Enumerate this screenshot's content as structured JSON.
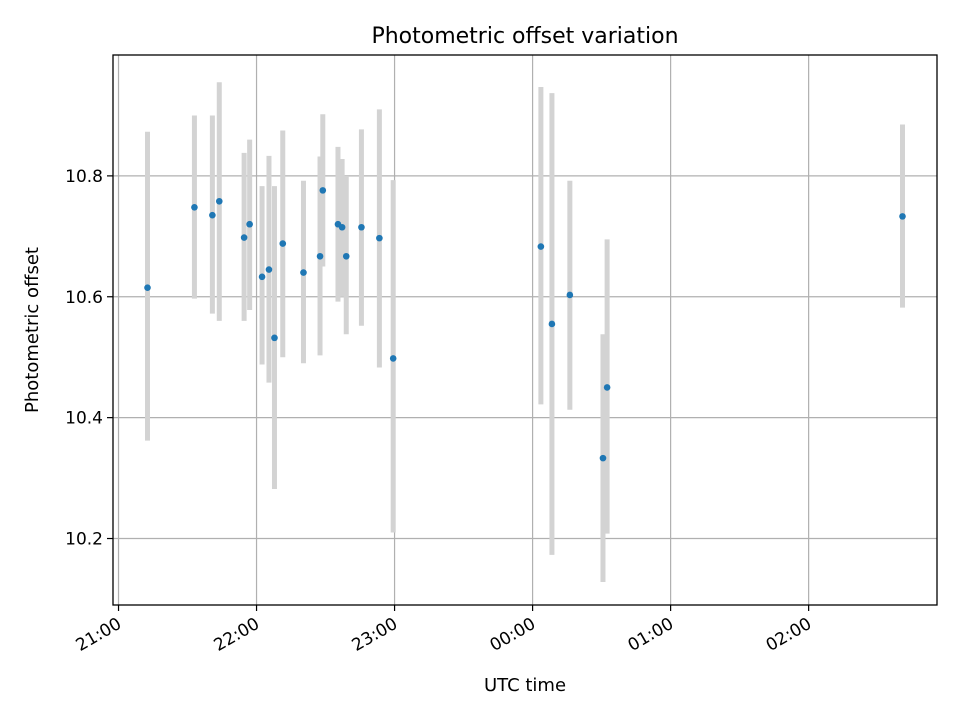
{
  "chart_data": {
    "type": "scatter",
    "title": "Photometric offset variation",
    "xlabel": "UTC time",
    "ylabel": "Photometric offset",
    "x_unit": "UTC time (hours; values past 24 are after midnight)",
    "xlim": [
      20.96,
      26.93
    ],
    "ylim": [
      10.09,
      11.0
    ],
    "grid": true,
    "x_ticks": [
      {
        "value": 21,
        "label": "21:00"
      },
      {
        "value": 22,
        "label": "22:00"
      },
      {
        "value": 23,
        "label": "23:00"
      },
      {
        "value": 24,
        "label": "00:00"
      },
      {
        "value": 25,
        "label": "01:00"
      },
      {
        "value": 26,
        "label": "02:00"
      }
    ],
    "y_ticks": [
      {
        "value": 10.2,
        "label": "10.2"
      },
      {
        "value": 10.4,
        "label": "10.4"
      },
      {
        "value": 10.6,
        "label": "10.6"
      },
      {
        "value": 10.8,
        "label": "10.8"
      }
    ],
    "marker_color": "#1f77b4",
    "errorbar_color": "#d3d3d3",
    "points": [
      {
        "x": 21.21,
        "y": 10.615,
        "low": 10.362,
        "high": 10.873
      },
      {
        "x": 21.55,
        "y": 10.748,
        "low": 10.597,
        "high": 10.9
      },
      {
        "x": 21.68,
        "y": 10.735,
        "low": 10.572,
        "high": 10.9
      },
      {
        "x": 21.73,
        "y": 10.758,
        "low": 10.56,
        "high": 10.955
      },
      {
        "x": 21.91,
        "y": 10.698,
        "low": 10.56,
        "high": 10.838
      },
      {
        "x": 21.95,
        "y": 10.72,
        "low": 10.578,
        "high": 10.86
      },
      {
        "x": 22.04,
        "y": 10.633,
        "low": 10.488,
        "high": 10.783
      },
      {
        "x": 22.09,
        "y": 10.645,
        "low": 10.458,
        "high": 10.833
      },
      {
        "x": 22.13,
        "y": 10.532,
        "low": 10.282,
        "high": 10.783
      },
      {
        "x": 22.19,
        "y": 10.688,
        "low": 10.5,
        "high": 10.875
      },
      {
        "x": 22.34,
        "y": 10.64,
        "low": 10.49,
        "high": 10.792
      },
      {
        "x": 22.46,
        "y": 10.667,
        "low": 10.503,
        "high": 10.832
      },
      {
        "x": 22.48,
        "y": 10.776,
        "low": 10.65,
        "high": 10.902
      },
      {
        "x": 22.59,
        "y": 10.72,
        "low": 10.592,
        "high": 10.848
      },
      {
        "x": 22.62,
        "y": 10.715,
        "low": 10.6,
        "high": 10.828
      },
      {
        "x": 22.65,
        "y": 10.667,
        "low": 10.538,
        "high": 10.8
      },
      {
        "x": 22.76,
        "y": 10.715,
        "low": 10.552,
        "high": 10.877
      },
      {
        "x": 22.89,
        "y": 10.697,
        "low": 10.483,
        "high": 10.91
      },
      {
        "x": 22.99,
        "y": 10.498,
        "low": 10.21,
        "high": 10.793
      },
      {
        "x": 24.06,
        "y": 10.683,
        "low": 10.422,
        "high": 10.947
      },
      {
        "x": 24.14,
        "y": 10.555,
        "low": 10.173,
        "high": 10.937
      },
      {
        "x": 24.27,
        "y": 10.603,
        "low": 10.413,
        "high": 10.792
      },
      {
        "x": 24.51,
        "y": 10.333,
        "low": 10.128,
        "high": 10.538
      },
      {
        "x": 24.54,
        "y": 10.45,
        "low": 10.208,
        "high": 10.695
      },
      {
        "x": 26.68,
        "y": 10.733,
        "low": 10.582,
        "high": 10.885
      }
    ]
  }
}
